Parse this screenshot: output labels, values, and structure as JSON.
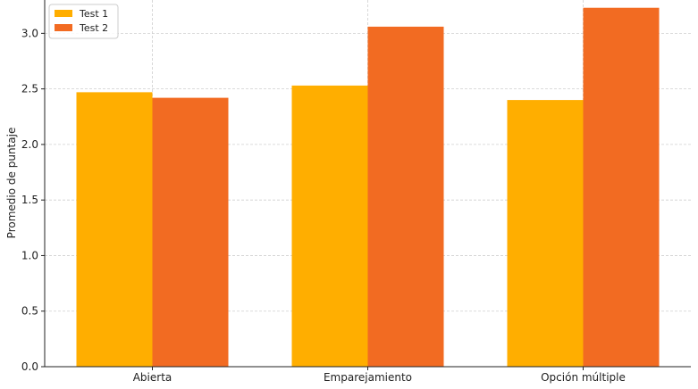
{
  "chart_data": {
    "type": "bar",
    "title": "",
    "xlabel": "",
    "ylabel": "Promedio de puntaje",
    "categories": [
      "Abierta",
      "Emparejamiento",
      "Opción múltiple"
    ],
    "series": [
      {
        "name": "Test 1",
        "values": [
          2.47,
          2.53,
          2.4
        ],
        "color": "#FFAE00"
      },
      {
        "name": "Test 2",
        "values": [
          2.42,
          3.06,
          3.23
        ],
        "color": "#F26B22"
      }
    ],
    "ylim": [
      0,
      3.3
    ],
    "yticks": [
      "0.0",
      "0.5",
      "1.0",
      "1.5",
      "2.0",
      "2.5",
      "3.0"
    ],
    "grid": true,
    "legend_position": "top-left"
  }
}
